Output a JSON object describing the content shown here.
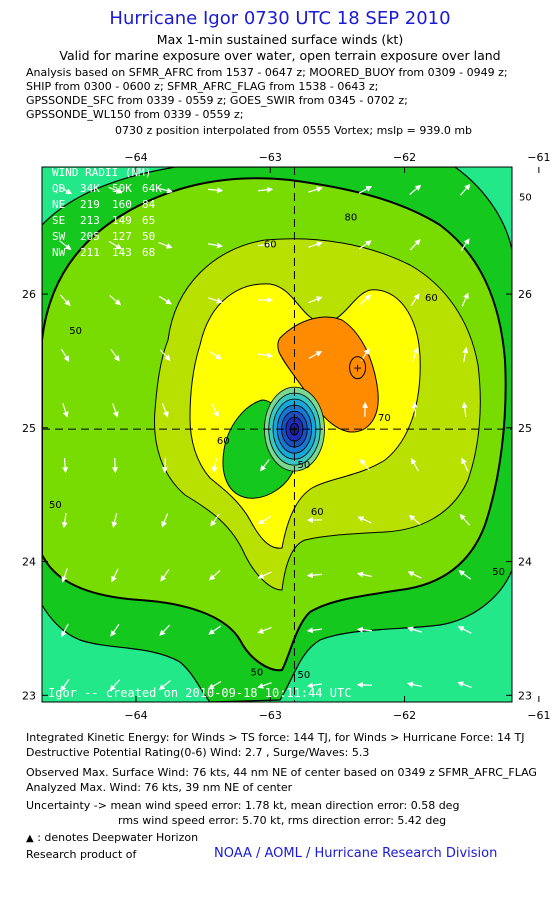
{
  "header": {
    "title": "Hurricane Igor 0730 UTC 18 SEP 2010",
    "subtitle1": "Max 1-min sustained surface winds (kt)",
    "subtitle2": "Valid for marine exposure over water, open terrain exposure over land",
    "analysis_lines": [
      "Analysis based on SFMR_AFRC from 1537 - 0647 z; MOORED_BUOY from 0309 - 0949 z;",
      "SHIP from 0300 - 0600 z; SFMR_AFRC_FLAG from 1538 - 0643 z;",
      "GPSSONDE_SFC from 0339 - 0559 z; GOES_SWIR from 0345 - 0702 z;",
      "GPSSONDE_WL150 from 0339 - 0559 z;"
    ],
    "position_note": "0730 z position interpolated from 0555 Vortex; mslp = 939.0 mb"
  },
  "chart_data": {
    "type": "heatmap",
    "x_axis": {
      "range": [
        -64.7,
        -61.2
      ],
      "ticks": [
        -64,
        -63,
        -62,
        -61
      ],
      "tick_labels": [
        "−64",
        "−63",
        "−62",
        "−61"
      ]
    },
    "y_axis": {
      "range": [
        22.95,
        26.95
      ],
      "ticks": [
        23,
        24,
        25,
        26
      ],
      "tick_labels": [
        "23",
        "24",
        "25",
        "26"
      ]
    },
    "center": {
      "lon": -62.82,
      "lat": 24.99
    },
    "max_wind_marker": {
      "lon": -62.35,
      "lat": 25.45,
      "symbol": "+"
    },
    "contour_labels": [
      {
        "text": "80",
        "lon": -62.4,
        "lat": 26.55
      },
      {
        "text": "60",
        "lon": -63.0,
        "lat": 26.35
      },
      {
        "text": "50",
        "lon": -64.45,
        "lat": 25.7
      },
      {
        "text": "60",
        "lon": -61.8,
        "lat": 25.95
      },
      {
        "text": "70",
        "lon": -62.15,
        "lat": 25.05
      },
      {
        "text": "60",
        "lon": -63.35,
        "lat": 24.88
      },
      {
        "text": "60",
        "lon": -62.65,
        "lat": 24.35
      },
      {
        "text": "50",
        "lon": -64.6,
        "lat": 24.4
      },
      {
        "text": "50",
        "lon": -61.3,
        "lat": 23.9
      },
      {
        "text": "50",
        "lon": -61.1,
        "lat": 26.7
      },
      {
        "text": "50",
        "lon": -63.1,
        "lat": 23.15
      },
      {
        "text": "50",
        "lon": -62.75,
        "lat": 23.13
      },
      {
        "text": "50",
        "lon": -62.75,
        "lat": 24.7
      }
    ],
    "wind_radii": {
      "title": "WIND RADII (NM)",
      "header": [
        "QD",
        "34K",
        "50K",
        "64K"
      ],
      "rows": [
        [
          "NE",
          "219",
          "160",
          "84"
        ],
        [
          "SE",
          "213",
          "149",
          "65"
        ],
        [
          "SW",
          "205",
          "127",
          "50"
        ],
        [
          "NW",
          "211",
          "143",
          "68"
        ]
      ]
    },
    "credit": "Igor -- created on 2010-09-18 10:11:44 UTC",
    "colors": {
      "c34": "#22e88a",
      "c40": "#14c81e",
      "c50": "#78dc00",
      "c60": "#b8e000",
      "c70": "#ffff00",
      "c80": "#ff8c00",
      "c90": "#bbbbbb",
      "eye": "#1d2db8"
    }
  },
  "footer": {
    "ike_line": "Integrated Kinetic Energy:  for Winds > TS force: 144 TJ,  for Winds > Hurricane Force: 14 TJ",
    "dpr_line": "Destructive Potential Rating(0-6)  Wind: 2.7 , Surge/Waves: 5.3",
    "obs_line": "Observed Max. Surface Wind: 76 kts, 44 nm NE of center based on 0349 z SFMR_AFRC_FLAG",
    "analyzed_line": "Analyzed Max. Wind: 76 kts, 39 nm NE of center",
    "unc_line1": "Uncertainty -> mean wind speed error: 1.78 kt,   mean direction error: 0.58 deg",
    "unc_line2": "rms wind speed error: 5.70 kt,   rms direction error: 5.42 deg",
    "deepwater_note": ": denotes Deepwater Horizon",
    "research_label": "Research product of",
    "research_org": "NOAA / AOML / Hurricane Research Division"
  }
}
